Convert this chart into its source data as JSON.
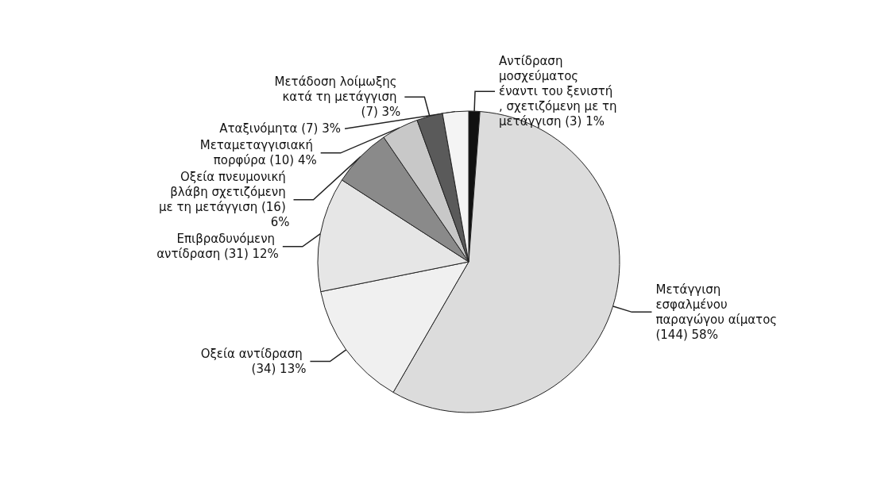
{
  "chart_data": {
    "type": "pie",
    "categories": [
      "Αντίδραση μοσχεύματος έναντι του ξενιστή, σχετιζόμενη με τη μετάγγιση",
      "Μετάγγιση εσφαλμένου παραγώγου αίματος",
      "Οξεία αντίδραση",
      "Επιβραδυνόμενη αντίδραση",
      "Οξεία πνευμονική βλάβη σχετιζόμενη με τη μετάγγιση",
      "Μεταμεταγγισιακή πορφύρα",
      "Μετάδοση λοίμωξης κατά τη μετάγγιση",
      "Αταξινόμητα"
    ],
    "values": [
      3,
      144,
      34,
      31,
      16,
      10,
      7,
      7
    ],
    "value_labels": [
      "(3) 1%",
      "(144) 58%",
      "(34) 13%",
      "(31) 12%",
      "(16) 6%",
      "(10) 4%",
      "(7) 3%",
      "(7) 3%"
    ],
    "colors": [
      "#111111",
      "#dcdcdc",
      "#f0f0f0",
      "#e6e6e6",
      "#8a8a8a",
      "#c8c8c8",
      "#5a5a5a",
      "#f4f4f4"
    ],
    "legend": false
  }
}
